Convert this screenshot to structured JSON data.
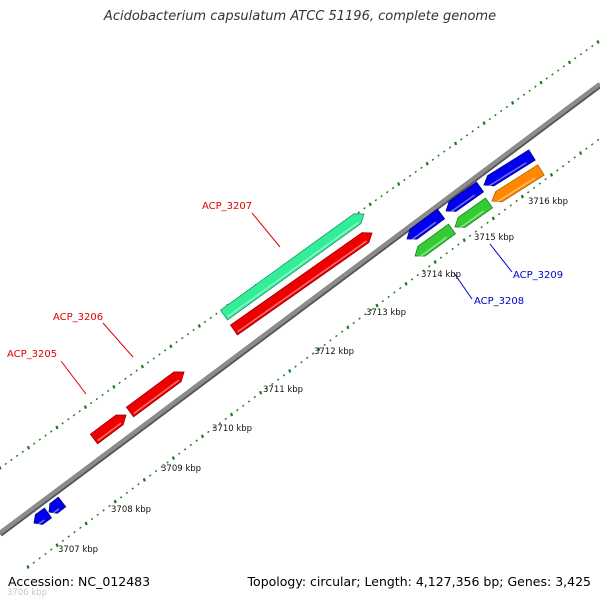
{
  "title": "Acidobacterium capsulatum ATCC 51196, complete genome",
  "footer": {
    "accession_label": "Accession:",
    "accession_value": "NC_012483",
    "topology_label": "Topology:",
    "topology_value": "circular",
    "length_label": "Length:",
    "length_value": "4,127,356 bp",
    "genes_label": "Genes:",
    "genes_value": "3,425"
  },
  "colors": {
    "backbone": "#8c8c8c",
    "tick_marks": "#1a7a1a",
    "label_red": "#e00000",
    "label_blue": "#0000cc",
    "gene_red": "#ee0000",
    "gene_teal": "#33ee99",
    "gene_blue": "#0000ee",
    "gene_green": "#33cc33",
    "gene_orange": "#ff8800"
  },
  "ruler": {
    "unit": "kbp",
    "labels": [
      {
        "text": "3706 kbp",
        "faded": true
      },
      {
        "text": "3707 kbp"
      },
      {
        "text": "3708 kbp"
      },
      {
        "text": "3709 kbp"
      },
      {
        "text": "3710 kbp"
      },
      {
        "text": "3711 kbp"
      },
      {
        "text": "3712 kbp"
      },
      {
        "text": "3713 kbp"
      },
      {
        "text": "3714 kbp"
      },
      {
        "text": "3715 kbp"
      },
      {
        "text": "3716 kbp"
      }
    ]
  },
  "genes": [
    {
      "label": "",
      "strand": "reverse",
      "color": "blue"
    },
    {
      "label": "",
      "strand": "reverse",
      "color": "blue"
    },
    {
      "label": "ACP_3205",
      "strand": "forward",
      "color": "red"
    },
    {
      "label": "ACP_3206",
      "strand": "forward",
      "color": "red"
    },
    {
      "label": "ACP_3207",
      "strand": "forward",
      "color": "teal"
    },
    {
      "label": "",
      "strand": "forward",
      "color": "red"
    },
    {
      "label": "",
      "strand": "reverse",
      "color": "blue"
    },
    {
      "label": "",
      "strand": "reverse",
      "color": "blue"
    },
    {
      "label": "",
      "strand": "reverse",
      "color": "blue"
    },
    {
      "label": "ACP_3208",
      "strand": "reverse",
      "color": "green"
    },
    {
      "label": "ACP_3209",
      "strand": "reverse",
      "color": "green"
    },
    {
      "label": "",
      "strand": "reverse",
      "color": "orange"
    }
  ]
}
